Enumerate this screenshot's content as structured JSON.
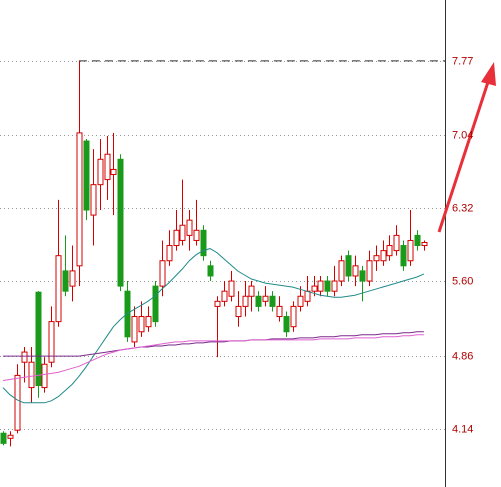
{
  "chart_data": {
    "type": "candlestick",
    "open": [
      4.1,
      4.05,
      4.13,
      4.8,
      4.55,
      5.49,
      4.55,
      4.8,
      5.2,
      5.7,
      5.55,
      5.75,
      6.98,
      6.25,
      6.55,
      6.6,
      6.65,
      6.8,
      5.5,
      5.0,
      5.1,
      5.15,
      5.55,
      5.55,
      5.8,
      5.95,
      6.0,
      6.05,
      6.0,
      6.1,
      5.75,
      5.35,
      5.4,
      5.45,
      5.25,
      5.35,
      5.45,
      5.45,
      5.4,
      5.45,
      5.25,
      5.25,
      5.15,
      5.35,
      5.4,
      5.5,
      5.5,
      5.6,
      5.5,
      5.6,
      5.85,
      5.65,
      5.7,
      5.6,
      5.8,
      5.8,
      5.85,
      5.9,
      5.95,
      5.8,
      6.05,
      5.95
    ],
    "high": [
      4.12,
      4.12,
      4.78,
      4.95,
      4.95,
      5.5,
      4.85,
      5.35,
      6.4,
      6.05,
      5.95,
      7.77,
      7.0,
      6.9,
      7.0,
      7.03,
      7.06,
      6.85,
      5.6,
      5.35,
      5.4,
      5.35,
      5.6,
      6.0,
      6.1,
      6.3,
      6.6,
      6.3,
      6.4,
      6.15,
      5.8,
      5.45,
      5.6,
      5.7,
      5.5,
      5.6,
      5.6,
      5.5,
      5.55,
      5.5,
      5.45,
      5.3,
      5.4,
      5.55,
      5.65,
      5.65,
      5.65,
      5.65,
      5.75,
      5.85,
      5.9,
      5.85,
      5.75,
      5.9,
      5.95,
      6.0,
      6.05,
      6.15,
      6.0,
      6.3,
      6.1,
      6.0
    ],
    "low": [
      3.98,
      3.97,
      4.1,
      4.6,
      4.4,
      4.45,
      4.5,
      4.75,
      5.15,
      5.45,
      5.4,
      5.55,
      6.2,
      5.95,
      6.3,
      6.4,
      6.25,
      5.5,
      5.0,
      4.95,
      5.05,
      5.1,
      5.15,
      5.45,
      5.75,
      5.9,
      5.95,
      5.9,
      5.95,
      5.8,
      5.6,
      4.85,
      5.35,
      5.4,
      5.15,
      5.25,
      5.3,
      5.3,
      5.35,
      5.3,
      5.2,
      5.05,
      5.1,
      5.3,
      5.35,
      5.45,
      5.45,
      5.45,
      5.45,
      5.55,
      5.6,
      5.55,
      5.4,
      5.55,
      5.7,
      5.75,
      5.8,
      5.85,
      5.7,
      5.75,
      5.9,
      5.9
    ],
    "close": [
      4.0,
      4.08,
      4.67,
      4.9,
      4.8,
      4.57,
      4.78,
      5.2,
      5.85,
      5.5,
      5.7,
      7.06,
      6.3,
      6.55,
      6.8,
      6.85,
      6.7,
      5.55,
      5.05,
      5.25,
      5.25,
      5.25,
      5.2,
      5.8,
      5.95,
      6.1,
      6.15,
      6.2,
      6.1,
      5.85,
      5.65,
      5.4,
      5.5,
      5.6,
      5.35,
      5.45,
      5.55,
      5.35,
      5.45,
      5.35,
      5.35,
      5.1,
      5.35,
      5.45,
      5.5,
      5.55,
      5.6,
      5.5,
      5.6,
      5.8,
      5.65,
      5.75,
      5.6,
      5.8,
      5.85,
      5.9,
      5.95,
      6.05,
      5.75,
      6.0,
      5.95,
      5.98
    ],
    "up_color": "#d40000",
    "down_color": "#1a9a1a",
    "series": [
      {
        "color": "#1f8a8a",
        "values": [
          4.55,
          4.48,
          4.43,
          4.4,
          4.4,
          4.4,
          4.4,
          4.42,
          4.46,
          4.52,
          4.58,
          4.66,
          4.75,
          4.85,
          4.95,
          5.05,
          5.15,
          5.22,
          5.28,
          5.32,
          5.36,
          5.4,
          5.45,
          5.52,
          5.58,
          5.65,
          5.72,
          5.8,
          5.86,
          5.9,
          5.92,
          5.88,
          5.82,
          5.76,
          5.7,
          5.66,
          5.62,
          5.6,
          5.58,
          5.57,
          5.56,
          5.55,
          5.54,
          5.52,
          5.5,
          5.48,
          5.46,
          5.45,
          5.44,
          5.44,
          5.45,
          5.46,
          5.48,
          5.5,
          5.52,
          5.54,
          5.56,
          5.58,
          5.6,
          5.62,
          5.64,
          5.67
        ]
      },
      {
        "color": "#7a2a8a",
        "values": [
          4.86,
          4.86,
          4.86,
          4.86,
          4.86,
          4.86,
          4.86,
          4.86,
          4.86,
          4.86,
          4.86,
          4.86,
          4.87,
          4.88,
          4.89,
          4.9,
          4.91,
          4.92,
          4.93,
          4.94,
          4.95,
          4.95,
          4.96,
          4.96,
          4.97,
          4.97,
          4.98,
          4.98,
          4.99,
          4.99,
          5.0,
          5.0,
          5.0,
          5.01,
          5.01,
          5.01,
          5.02,
          5.02,
          5.02,
          5.03,
          5.03,
          5.03,
          5.03,
          5.04,
          5.04,
          5.04,
          5.05,
          5.05,
          5.05,
          5.06,
          5.06,
          5.06,
          5.07,
          5.07,
          5.07,
          5.08,
          5.08,
          5.08,
          5.09,
          5.09,
          5.1,
          5.1
        ]
      },
      {
        "color": "#e060d0",
        "values": [
          4.62,
          4.63,
          4.64,
          4.65,
          4.66,
          4.67,
          4.68,
          4.69,
          4.7,
          4.72,
          4.74,
          4.76,
          4.79,
          4.82,
          4.85,
          4.88,
          4.9,
          4.92,
          4.93,
          4.94,
          4.95,
          4.96,
          4.97,
          4.98,
          4.99,
          5.0,
          5.0,
          5.01,
          5.01,
          5.01,
          5.01,
          5.01,
          5.01,
          5.01,
          5.01,
          5.01,
          5.02,
          5.02,
          5.02,
          5.02,
          5.02,
          5.02,
          5.02,
          5.02,
          5.02,
          5.02,
          5.03,
          5.03,
          5.03,
          5.03,
          5.03,
          5.04,
          5.04,
          5.04,
          5.04,
          5.05,
          5.05,
          5.05,
          5.06,
          5.06,
          5.07,
          5.07
        ]
      }
    ],
    "ylim": [
      3.57,
      8.37
    ],
    "yticks": [
      7.77,
      7.04,
      6.32,
      {
        "value": 5.6,
        "label": "5.60"
      },
      4.86,
      4.14
    ],
    "grid": true
  }
}
